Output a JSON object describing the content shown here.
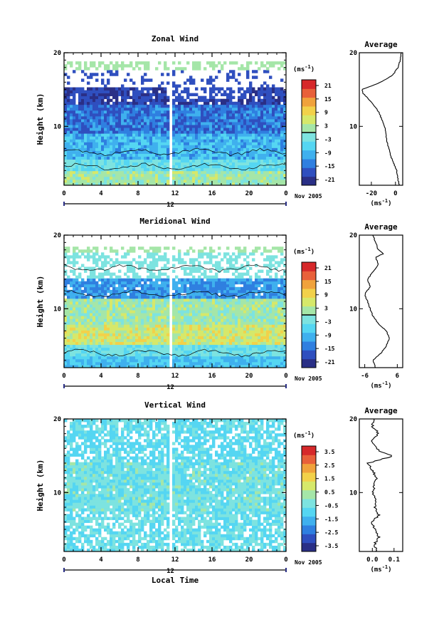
{
  "colors": {
    "scale": [
      "#2a2f86",
      "#2f4fbf",
      "#2f7fe0",
      "#3fb0ee",
      "#55d6f2",
      "#7de3e0",
      "#a5e6a8",
      "#d6e86a",
      "#f2d14a",
      "#f0a23c",
      "#e8603a",
      "#d6282a"
    ],
    "void": "#ffffff"
  },
  "panels": [
    {
      "title": "Zonal Wind",
      "ylabel": "Height (km)",
      "yticks": [
        "20",
        "10"
      ],
      "xticks": [
        "0",
        "4",
        "8",
        "12",
        "16",
        "20",
        "0"
      ],
      "date_marker": "12",
      "date_label": "Nov 2005",
      "cb_unit": "(ms",
      "cb_unit_sup": "-1",
      "cb_unit_end": ")",
      "cb_ticks": [
        "21",
        "15",
        "9",
        "3",
        "-3",
        "-9",
        "-15",
        "-21"
      ],
      "avg_title": "Average",
      "avg_yticks": [
        "20",
        "10"
      ],
      "avg_xticks": [
        "-20",
        "0"
      ],
      "avg_unit": "(ms",
      "avg_unit_sup": "-1",
      "avg_unit_end": ")"
    },
    {
      "title": "Meridional Wind",
      "ylabel": "Height (km)",
      "yticks": [
        "20",
        "10"
      ],
      "xticks": [
        "0",
        "4",
        "8",
        "12",
        "16",
        "20",
        "0"
      ],
      "date_marker": "12",
      "date_label": "Nov 2005",
      "cb_unit": "(ms",
      "cb_unit_sup": "-1",
      "cb_unit_end": ")",
      "cb_ticks": [
        "21",
        "15",
        "9",
        "3",
        "-3",
        "-9",
        "-15",
        "-21"
      ],
      "avg_title": "Average",
      "avg_yticks": [
        "20",
        "10"
      ],
      "avg_xticks": [
        "-6",
        "6"
      ],
      "avg_unit": "(ms",
      "avg_unit_sup": "-1",
      "avg_unit_end": ")"
    },
    {
      "title": "Vertical Wind",
      "ylabel": "Height (km)",
      "yticks": [
        "20",
        "10"
      ],
      "xticks": [
        "0",
        "4",
        "8",
        "12",
        "16",
        "20",
        "0"
      ],
      "date_marker": "12",
      "date_label": "Nov 2005",
      "xlabel": "Local Time",
      "cb_unit": "(ms",
      "cb_unit_sup": "-1",
      "cb_unit_end": ")",
      "cb_ticks": [
        "3.5",
        "2.5",
        "1.5",
        "0.5",
        "-0.5",
        "-1.5",
        "-2.5",
        "-3.5"
      ],
      "avg_title": "Average",
      "avg_yticks": [
        "20",
        "10"
      ],
      "avg_xticks": [
        "0.0",
        "0.1"
      ],
      "avg_unit": "(ms",
      "avg_unit_sup": "-1",
      "avg_unit_end": ")"
    }
  ],
  "chart_data": [
    {
      "type": "heatmap",
      "title": "Zonal Wind",
      "ylabel": "Height (km)",
      "x_range_hours": [
        0,
        24
      ],
      "y_range_km": [
        2,
        20
      ],
      "colorbar_range": [
        -21,
        21
      ],
      "profile": [
        [
          2,
          3
        ],
        [
          4,
          1
        ],
        [
          6,
          -4
        ],
        [
          8,
          -7
        ],
        [
          10,
          -9
        ],
        [
          12,
          -14
        ],
        [
          13.5,
          -21
        ],
        [
          14.5,
          -27
        ],
        [
          15,
          -28
        ],
        [
          16,
          -12
        ],
        [
          17,
          -2
        ],
        [
          18,
          2
        ],
        [
          19,
          4
        ],
        [
          20,
          5
        ]
      ]
    },
    {
      "type": "heatmap",
      "title": "Meridional Wind",
      "ylabel": "Height (km)",
      "x_range_hours": [
        0,
        24
      ],
      "y_range_km": [
        2,
        20
      ],
      "colorbar_range": [
        -21,
        21
      ],
      "profile": [
        [
          2,
          -2
        ],
        [
          3,
          -3
        ],
        [
          4,
          0
        ],
        [
          5,
          2
        ],
        [
          6,
          3
        ],
        [
          7,
          2
        ],
        [
          8,
          -1
        ],
        [
          9,
          -3
        ],
        [
          10,
          -4
        ],
        [
          11,
          -5
        ],
        [
          12,
          -6
        ],
        [
          13,
          -4
        ],
        [
          14,
          -5
        ],
        [
          15,
          -3
        ],
        [
          16,
          -1
        ],
        [
          17,
          -2
        ],
        [
          17.5,
          1
        ],
        [
          18,
          -1
        ],
        [
          19,
          -2
        ],
        [
          20,
          -3
        ]
      ]
    },
    {
      "type": "heatmap",
      "title": "Vertical Wind",
      "ylabel": "Height (km)",
      "xlabel": "Local Time",
      "x_range_hours": [
        0,
        24
      ],
      "y_range_km": [
        2,
        20
      ],
      "colorbar_range": [
        -3.5,
        3.5
      ],
      "profile": [
        [
          2,
          0.02
        ],
        [
          3,
          0.01
        ],
        [
          4,
          0.03
        ],
        [
          5,
          0.01
        ],
        [
          6,
          0.0
        ],
        [
          7,
          0.03
        ],
        [
          8,
          0.01
        ],
        [
          9,
          0.02
        ],
        [
          10,
          0.0
        ],
        [
          11,
          0.01
        ],
        [
          12,
          0.02
        ],
        [
          13,
          0.0
        ],
        [
          14,
          -0.02
        ],
        [
          15,
          0.1
        ],
        [
          15.5,
          0.04
        ],
        [
          16,
          0.02
        ],
        [
          17,
          -0.01
        ],
        [
          18,
          0.03
        ],
        [
          19,
          0.0
        ],
        [
          20,
          0.01
        ]
      ]
    }
  ]
}
